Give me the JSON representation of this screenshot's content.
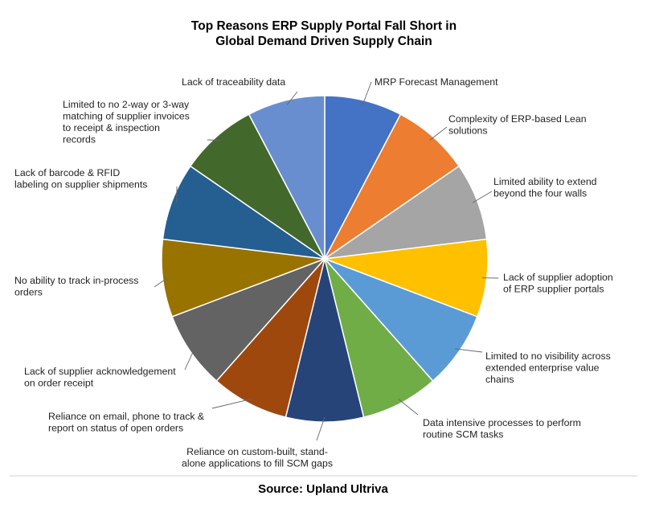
{
  "chart_data": {
    "type": "pie",
    "title": [
      "Top Reasons ERP Supply Portal Fall Short in",
      "Global Demand Driven Supply Chain"
    ],
    "source": "Source: Upland Ultriva",
    "slices": [
      {
        "label": [
          "MRP Forecast Management"
        ],
        "value": 1,
        "color": "#4472C4"
      },
      {
        "label": [
          "Complexity of ERP-based Lean",
          "solutions"
        ],
        "value": 1,
        "color": "#ED7D31"
      },
      {
        "label": [
          "Limited ability to extend",
          "beyond the four walls"
        ],
        "value": 1,
        "color": "#A5A5A5"
      },
      {
        "label": [
          "Lack of supplier adoption",
          "of ERP supplier portals"
        ],
        "value": 1,
        "color": "#FFC000"
      },
      {
        "label": [
          "Limited to no visibility across",
          "extended enterprise value",
          "chains"
        ],
        "value": 1,
        "color": "#5B9BD5"
      },
      {
        "label": [
          "Data intensive processes to perform",
          "routine SCM tasks"
        ],
        "value": 1,
        "color": "#70AD47"
      },
      {
        "label": [
          "Reliance on custom-built, stand-",
          "alone applications to fill SCM gaps"
        ],
        "value": 1,
        "color": "#264478"
      },
      {
        "label": [
          "Reliance on email, phone to track &",
          "report on  status of open orders"
        ],
        "value": 1,
        "color": "#9E480E"
      },
      {
        "label": [
          "Lack of supplier acknowledgement",
          "on order receipt"
        ],
        "value": 1,
        "color": "#636363"
      },
      {
        "label": [
          "No ability to track in-process",
          "orders"
        ],
        "value": 1,
        "color": "#997300"
      },
      {
        "label": [
          "Lack of barcode & RFID",
          "labeling on supplier shipments"
        ],
        "value": 1,
        "color": "#255E91"
      },
      {
        "label": [
          "Limited to no 2-way or 3-way",
          "matching of supplier invoices",
          "to receipt & inspection",
          "records"
        ],
        "value": 1,
        "color": "#43682B"
      },
      {
        "label": [
          "Lack of traceability data"
        ],
        "value": 1,
        "color": "#698ED0"
      }
    ]
  }
}
